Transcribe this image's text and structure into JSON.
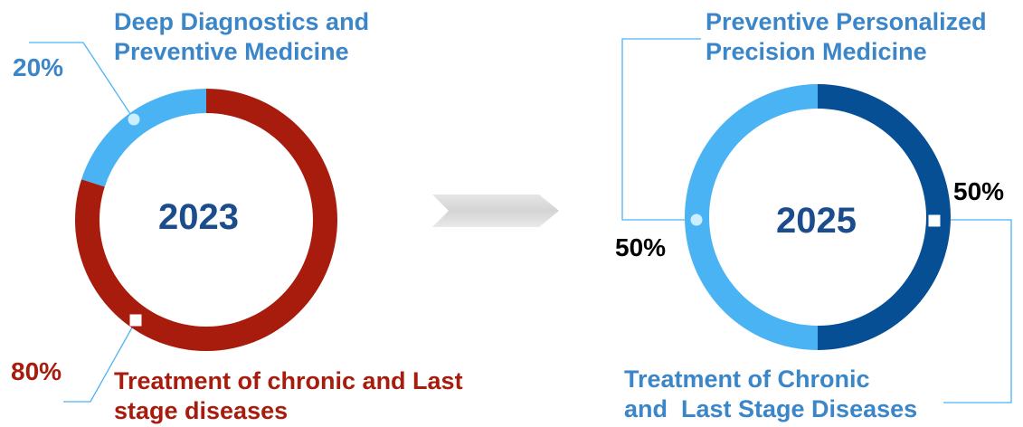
{
  "chart_data": [
    {
      "type": "pie",
      "center_label": "2023",
      "categories": [
        "Deep Diagnostics and Preventive Medicine",
        "Treatment of chronic and Last stage diseases"
      ],
      "values": [
        20,
        80
      ],
      "value_labels": [
        "20%",
        "80%"
      ],
      "colors": [
        "#4ab3f4",
        "#a81c0d"
      ]
    },
    {
      "type": "pie",
      "center_label": "2025",
      "categories": [
        "Preventive Personalized Precision Medicine",
        "Treatment of Chronic and Last Stage Diseases"
      ],
      "values": [
        50,
        50
      ],
      "value_labels": [
        "50%",
        "50%"
      ],
      "colors": [
        "#4ab3f4",
        "#064f94"
      ]
    }
  ],
  "left": {
    "top_label": [
      "Deep Diagnostics and",
      "Preventive Medicine"
    ],
    "bottom_label": [
      "Treatment of chronic and Last",
      "stage diseases"
    ]
  },
  "right": {
    "top_label": [
      "Preventive Personalized",
      "Precision Medicine"
    ],
    "bottom_label": [
      "Treatment of Chronic",
      "and  Last Stage Diseases"
    ]
  },
  "colors": {
    "light_blue": "#4ab3f4",
    "dark_red": "#a81c0d",
    "dark_blue": "#064f94",
    "label_blue": "#3a86c8",
    "year_blue": "#1b4c8c",
    "arrow_gray": "#d9d9d9"
  },
  "icons": {
    "transition": "right-arrow-icon"
  }
}
